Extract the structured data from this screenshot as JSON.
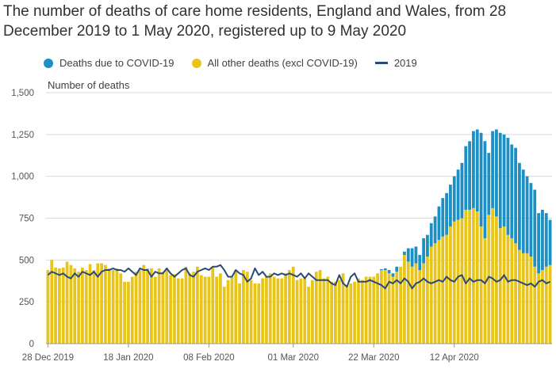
{
  "chart_data": {
    "type": "bar",
    "stacked": true,
    "title": "The number of deaths of care home residents, England and Wales, from 28 December 2019 to 1 May 2020, registered up to 9 May 2020",
    "ylabel": "Number of deaths",
    "xlabel": "",
    "ylim": [
      0,
      1500
    ],
    "yticks": [
      0,
      250,
      500,
      750,
      1000,
      1250,
      1500
    ],
    "ytick_labels": [
      "0",
      "250",
      "500",
      "750",
      "1,000",
      "1,250",
      "1,500"
    ],
    "xtick_labels": [
      {
        "index": 0,
        "label": "28 Dec 2019"
      },
      {
        "index": 21,
        "label": "18 Jan 2020"
      },
      {
        "index": 42,
        "label": "08 Feb 2020"
      },
      {
        "index": 64,
        "label": "01 Mar 2020"
      },
      {
        "index": 85,
        "label": "22 Mar 2020"
      },
      {
        "index": 106,
        "label": "12 Apr 2020"
      }
    ],
    "legend": [
      "Deaths due to COVID-19",
      "All other deaths (excl COVID-19)",
      "2019"
    ],
    "colors": {
      "covid": "#206095",
      "covid_bar": "#1c8fc4",
      "other": "#e8c51a",
      "line2019": "#2b4a73"
    },
    "series": [
      {
        "name": "All other deaths (excl COVID-19)",
        "values": [
          440,
          500,
          455,
          450,
          455,
          490,
          470,
          450,
          430,
          455,
          440,
          475,
          440,
          480,
          480,
          470,
          450,
          440,
          450,
          420,
          370,
          370,
          400,
          430,
          440,
          470,
          450,
          450,
          400,
          450,
          430,
          440,
          410,
          415,
          390,
          390,
          460,
          420,
          430,
          460,
          410,
          400,
          400,
          460,
          400,
          420,
          340,
          380,
          400,
          440,
          360,
          440,
          430,
          380,
          360,
          360,
          390,
          400,
          420,
          400,
          390,
          390,
          420,
          440,
          460,
          380,
          390,
          390,
          340,
          380,
          430,
          440,
          390,
          400,
          370,
          370,
          380,
          420,
          350,
          360,
          370,
          390,
          380,
          400,
          400,
          400,
          420,
          440,
          440,
          420,
          400,
          430,
          460,
          530,
          490,
          460,
          480,
          440,
          480,
          520,
          580,
          600,
          620,
          640,
          650,
          700,
          730,
          740,
          750,
          800,
          800,
          810,
          790,
          700,
          630,
          770,
          810,
          760,
          690,
          700,
          650,
          630,
          600,
          560,
          540,
          540,
          520,
          460,
          420,
          440,
          460,
          470
        ]
      },
      {
        "name": "Deaths due to COVID-19",
        "values": [
          0,
          0,
          0,
          0,
          0,
          0,
          0,
          0,
          0,
          0,
          0,
          0,
          0,
          0,
          0,
          0,
          0,
          0,
          0,
          0,
          0,
          0,
          0,
          0,
          0,
          0,
          0,
          0,
          0,
          0,
          0,
          0,
          0,
          0,
          0,
          0,
          0,
          0,
          0,
          0,
          0,
          0,
          0,
          0,
          0,
          0,
          0,
          0,
          0,
          0,
          0,
          0,
          0,
          0,
          0,
          0,
          0,
          0,
          0,
          0,
          0,
          0,
          0,
          0,
          0,
          0,
          0,
          0,
          0,
          0,
          0,
          0,
          0,
          0,
          0,
          0,
          0,
          0,
          0,
          0,
          0,
          0,
          0,
          0,
          0,
          0,
          0,
          5,
          10,
          20,
          20,
          30,
          0,
          20,
          80,
          110,
          100,
          90,
          150,
          130,
          140,
          160,
          200,
          230,
          250,
          250,
          270,
          300,
          330,
          380,
          410,
          460,
          490,
          560,
          580,
          370,
          460,
          520,
          570,
          550,
          580,
          560,
          570,
          520,
          500,
          460,
          440,
          460,
          360,
          360,
          320,
          270
        ]
      },
      {
        "name": "2019",
        "type": "line",
        "values": [
          410,
          430,
          420,
          410,
          420,
          400,
          390,
          420,
          400,
          430,
          420,
          410,
          430,
          400,
          430,
          440,
          440,
          450,
          440,
          440,
          430,
          450,
          430,
          410,
          450,
          440,
          440,
          400,
          430,
          420,
          420,
          450,
          420,
          400,
          420,
          440,
          450,
          410,
          400,
          430,
          440,
          450,
          440,
          460,
          460,
          470,
          440,
          400,
          400,
          440,
          420,
          410,
          370,
          390,
          450,
          410,
          430,
          400,
          400,
          420,
          410,
          420,
          410,
          420,
          410,
          400,
          420,
          390,
          420,
          400,
          380,
          380,
          380,
          380,
          360,
          350,
          410,
          360,
          340,
          400,
          420,
          370,
          370,
          370,
          380,
          370,
          360,
          350,
          330,
          370,
          360,
          380,
          360,
          390,
          370,
          330,
          360,
          370,
          390,
          370,
          360,
          370,
          380,
          370,
          400,
          380,
          370,
          400,
          410,
          360,
          390,
          370,
          380,
          380,
          360,
          400,
          390,
          370,
          380,
          410,
          370,
          380,
          380,
          370,
          360,
          350,
          360,
          340,
          370,
          380,
          360,
          370
        ]
      }
    ]
  }
}
